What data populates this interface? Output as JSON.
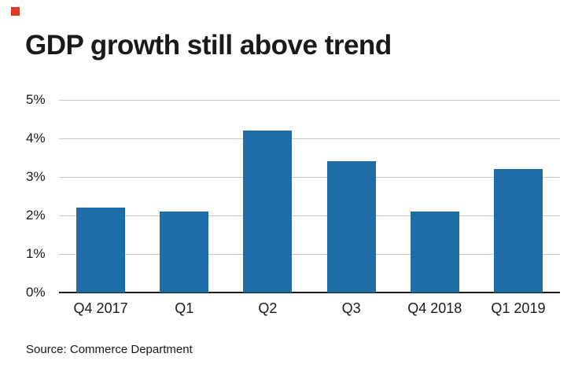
{
  "title": "GDP growth still above trend",
  "source": "Source: Commerce Department",
  "accent": {
    "brand_square_color": "#dd3a2a",
    "bar_color": "#1e6da6",
    "gridline_color": "#c9c9c9",
    "axis_color": "#1a1a1a"
  },
  "chart_data": {
    "type": "bar",
    "title": "GDP growth still above trend",
    "categories": [
      "Q4 2017",
      "Q1",
      "Q2",
      "Q3",
      "Q4 2018",
      "Q1 2019"
    ],
    "values": [
      2.2,
      2.1,
      4.2,
      3.4,
      2.1,
      3.2
    ],
    "xlabel": "",
    "ylabel": "",
    "ylim": [
      0,
      5
    ],
    "yticks": [
      0,
      1,
      2,
      3,
      4,
      5
    ],
    "ytick_labels": [
      "0%",
      "1%",
      "2%",
      "3%",
      "4%",
      "5%"
    ],
    "grid": true,
    "legend": "none",
    "bar_color": "#1e6da6",
    "source": "Source: Commerce Department"
  }
}
